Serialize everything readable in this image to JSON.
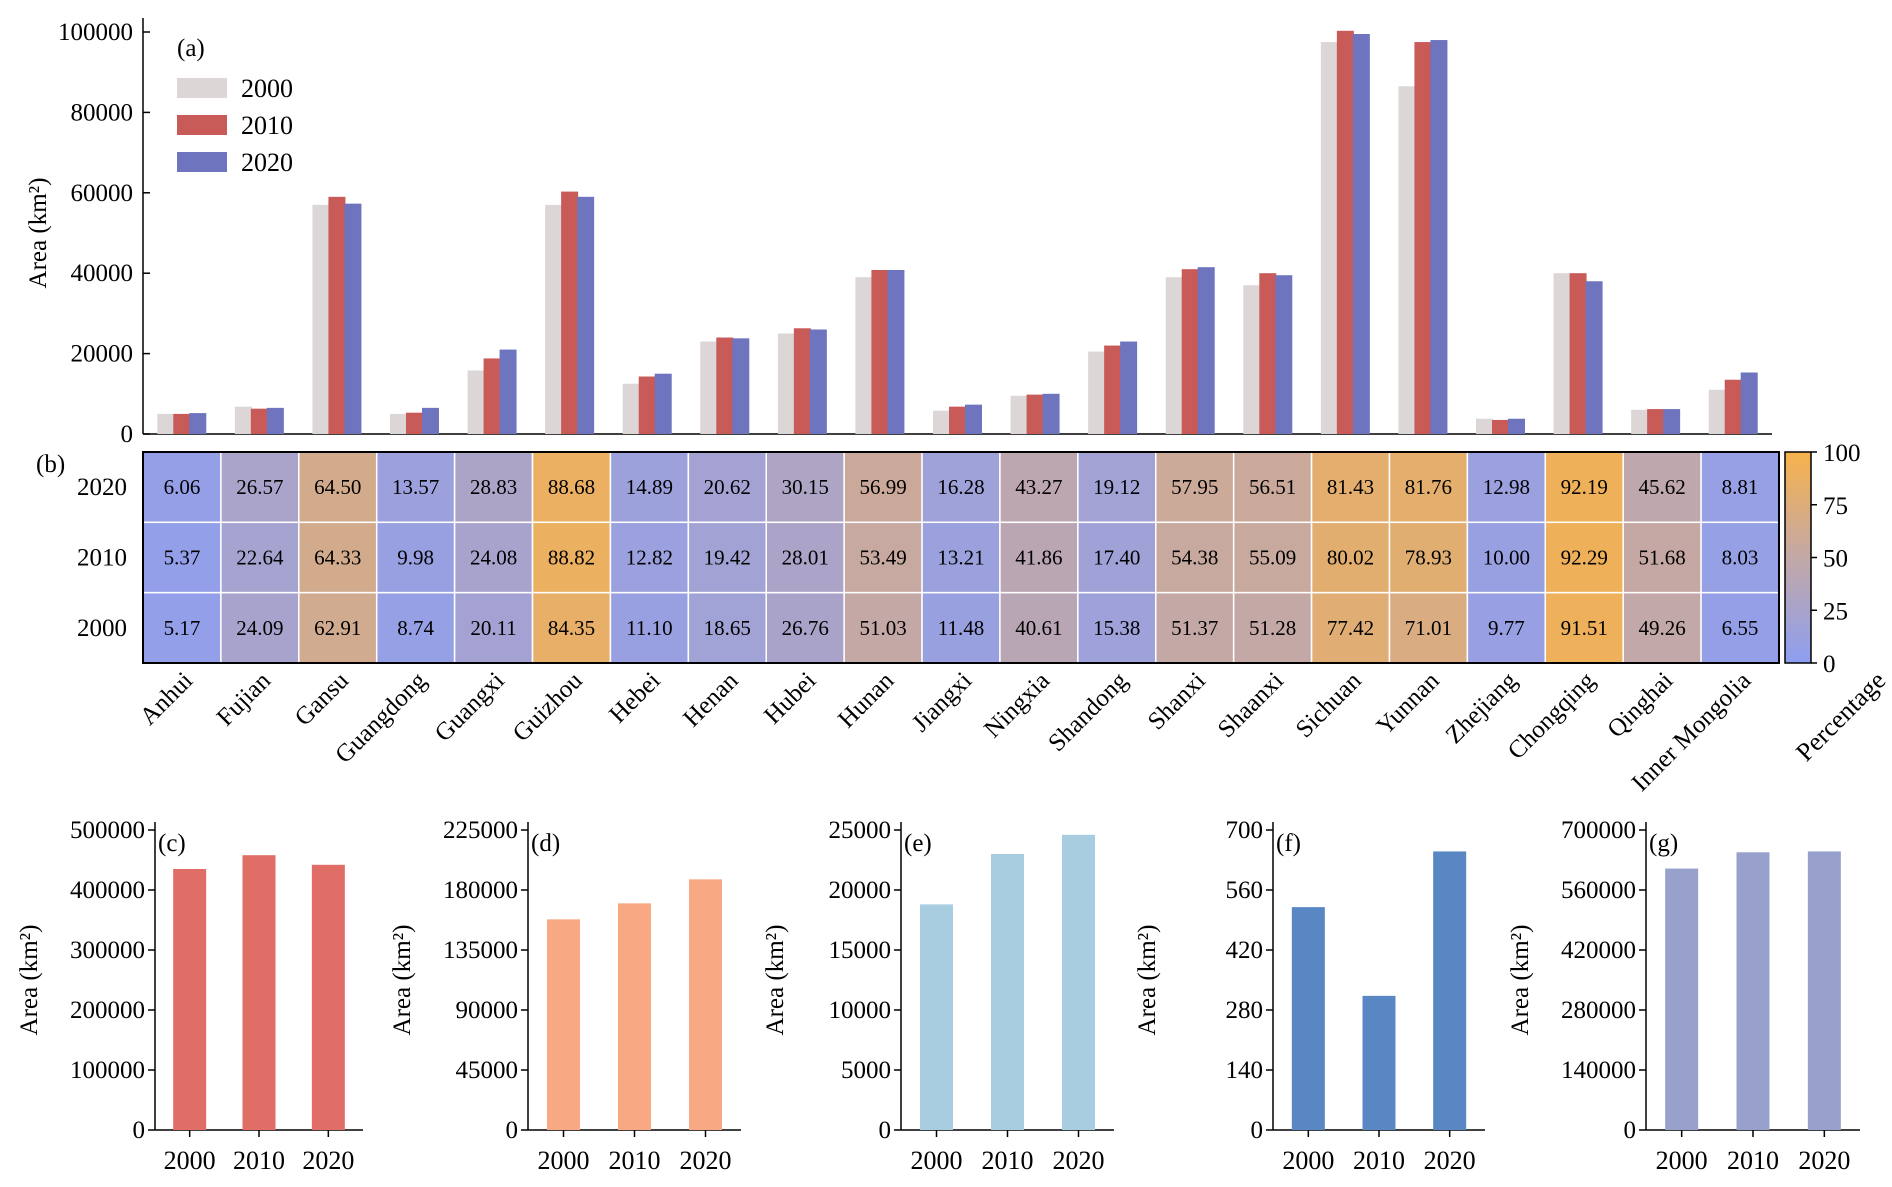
{
  "chart_data": [
    {
      "id": "a",
      "panel_label": "(a)",
      "type": "bar",
      "ylabel": "Area (km²)",
      "ylim": [
        0,
        100000
      ],
      "yticks": [
        "0",
        "20000",
        "40000",
        "60000",
        "80000",
        "100000"
      ],
      "categories": [
        "Anhui",
        "Fujian",
        "Gansu",
        "Guangdong",
        "Guangxi",
        "Guizhou",
        "Hebei",
        "Henan",
        "Hubei",
        "Hunan",
        "Jiangxi",
        "Ningxia",
        "Shandong",
        "Shanxi",
        "Shaanxi",
        "Sichuan",
        "Yunnan",
        "Zhejiang",
        "Chongqing",
        "Qinghai",
        "Inner Mongolia"
      ],
      "series": [
        {
          "name": "2000",
          "color": "#dcd6d6",
          "values": [
            5000,
            6800,
            57000,
            5000,
            15800,
            57000,
            12500,
            23000,
            25000,
            39000,
            5800,
            9500,
            20500,
            39000,
            37000,
            97500,
            86500,
            3800,
            40000,
            6000,
            11000
          ]
        },
        {
          "name": "2010",
          "color": "#c85a58",
          "values": [
            5000,
            6300,
            59000,
            5300,
            18800,
            60300,
            14300,
            24000,
            26300,
            40800,
            6800,
            9800,
            22000,
            41000,
            40000,
            100300,
            97500,
            3500,
            40000,
            6200,
            13500
          ]
        },
        {
          "name": "2020",
          "color": "#6f74be",
          "values": [
            5200,
            6500,
            57300,
            6500,
            21000,
            59000,
            15000,
            23800,
            26000,
            40800,
            7300,
            10000,
            23000,
            41500,
            39500,
            99500,
            98000,
            3800,
            38000,
            6200,
            15300
          ]
        }
      ],
      "legend": [
        "2000",
        "2010",
        "2020"
      ]
    },
    {
      "id": "b",
      "panel_label": "(b)",
      "type": "heatmap",
      "years": [
        "2020",
        "2010",
        "2000"
      ],
      "categories": [
        "Anhui",
        "Fujian",
        "Gansu",
        "Guangdong",
        "Guangxi",
        "Guizhou",
        "Hebei",
        "Henan",
        "Hubei",
        "Hunan",
        "Jiangxi",
        "Ningxia",
        "Shandong",
        "Shanxi",
        "Shaanxi",
        "Sichuan",
        "Yunnan",
        "Zhejiang",
        "Chongqing",
        "Qinghai",
        "Inner Mongolia"
      ],
      "values": [
        [
          "6.06",
          "26.57",
          "64.50",
          "13.57",
          "28.83",
          "88.68",
          "14.89",
          "20.62",
          "30.15",
          "56.99",
          "16.28",
          "43.27",
          "19.12",
          "57.95",
          "56.51",
          "81.43",
          "81.76",
          "12.98",
          "92.19",
          "45.62",
          "8.81"
        ],
        [
          "5.37",
          "22.64",
          "64.33",
          "9.98",
          "24.08",
          "88.82",
          "12.82",
          "19.42",
          "28.01",
          "53.49",
          "13.21",
          "41.86",
          "17.40",
          "54.38",
          "55.09",
          "80.02",
          "78.93",
          "10.00",
          "92.29",
          "51.68",
          "8.03"
        ],
        [
          "5.17",
          "24.09",
          "62.91",
          "8.74",
          "20.11",
          "84.35",
          "11.10",
          "18.65",
          "26.76",
          "51.03",
          "11.48",
          "40.61",
          "15.38",
          "51.37",
          "51.28",
          "77.42",
          "71.01",
          "9.77",
          "91.51",
          "49.26",
          "6.55"
        ]
      ],
      "colorbar": {
        "label": "Percentage",
        "range": [
          0,
          100
        ],
        "ticks": [
          "0",
          "25",
          "50",
          "75",
          "100"
        ],
        "colors": [
          "#8d9ef1",
          "#c3a8a7",
          "#f7b24c"
        ]
      }
    },
    {
      "id": "c",
      "panel_label": "(c)",
      "type": "bar",
      "ylabel": "Area (km²)",
      "ylim": [
        0,
        500000
      ],
      "yticks": [
        "0",
        "100000",
        "200000",
        "300000",
        "400000",
        "500000"
      ],
      "categories": [
        "2000",
        "2010",
        "2020"
      ],
      "values": [
        435000,
        458000,
        442000
      ],
      "color": "#e06d66"
    },
    {
      "id": "d",
      "panel_label": "(d)",
      "type": "bar",
      "ylabel": "Area (km²)",
      "ylim": [
        0,
        225000
      ],
      "yticks": [
        "0",
        "45000",
        "90000",
        "135000",
        "180000",
        "225000"
      ],
      "categories": [
        "2000",
        "2010",
        "2020"
      ],
      "values": [
        158000,
        170000,
        188000
      ],
      "color": "#f8a983"
    },
    {
      "id": "e",
      "panel_label": "(e)",
      "type": "bar",
      "ylabel": "Area (km²)",
      "ylim": [
        0,
        25000
      ],
      "yticks": [
        "0",
        "5000",
        "10000",
        "15000",
        "20000",
        "25000"
      ],
      "categories": [
        "2000",
        "2010",
        "2020"
      ],
      "values": [
        18800,
        23000,
        24600
      ],
      "color": "#a8cce0"
    },
    {
      "id": "f",
      "panel_label": "(f)",
      "type": "bar",
      "ylabel": "Area (km²)",
      "ylim": [
        0,
        700
      ],
      "yticks": [
        "0",
        "140",
        "280",
        "420",
        "560",
        "700"
      ],
      "categories": [
        "2000",
        "2010",
        "2020"
      ],
      "values": [
        520,
        313,
        650
      ],
      "color": "#5987c4"
    },
    {
      "id": "g",
      "panel_label": "(g)",
      "type": "bar",
      "ylabel": "Area (km²)",
      "ylim": [
        0,
        700000
      ],
      "yticks": [
        "0",
        "140000",
        "280000",
        "420000",
        "560000",
        "700000"
      ],
      "categories": [
        "2000",
        "2010",
        "2020"
      ],
      "values": [
        610000,
        648000,
        650000
      ],
      "color": "#97a1cb"
    }
  ]
}
